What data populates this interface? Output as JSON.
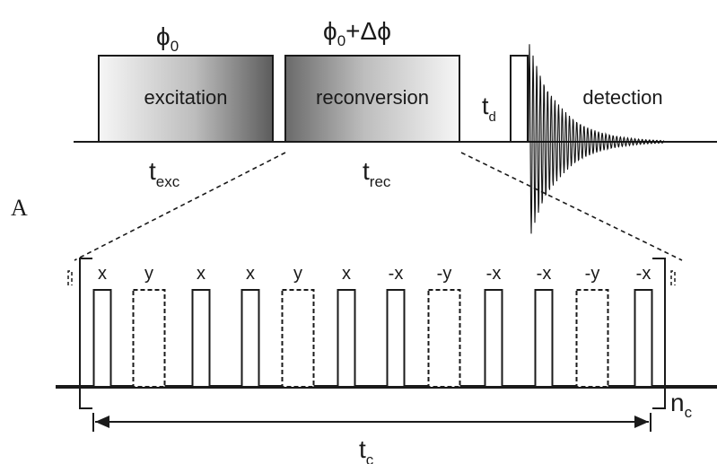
{
  "upper": {
    "phase_first": "ϕ",
    "phase_first_sub": "0",
    "phase_second": "ϕ",
    "phase_second_sub": "0",
    "phase_second_suffix": "+Δϕ",
    "block_excitation": "excitation",
    "block_reconversion": "reconversion",
    "delay_symbol": "t",
    "delay_sub": "d",
    "block_detection": "detection",
    "exc_time": "t",
    "exc_time_sub": "exc",
    "rec_time": "t",
    "rec_time_sub": "rec"
  },
  "panel_letter": "A",
  "pulse_train": {
    "phases": [
      "x",
      "y",
      "x",
      "x",
      "y",
      "x",
      "-x",
      "-y",
      "-x",
      "-x",
      "-y",
      "-x"
    ],
    "cycle_count": "n",
    "cycle_count_sub": "c",
    "cycle_time": "t",
    "cycle_time_sub": "c"
  },
  "colors": {
    "line": "#1a1a1a",
    "gradient_light": "#f4f4f4",
    "gradient_dark": "#6a6a6a"
  }
}
